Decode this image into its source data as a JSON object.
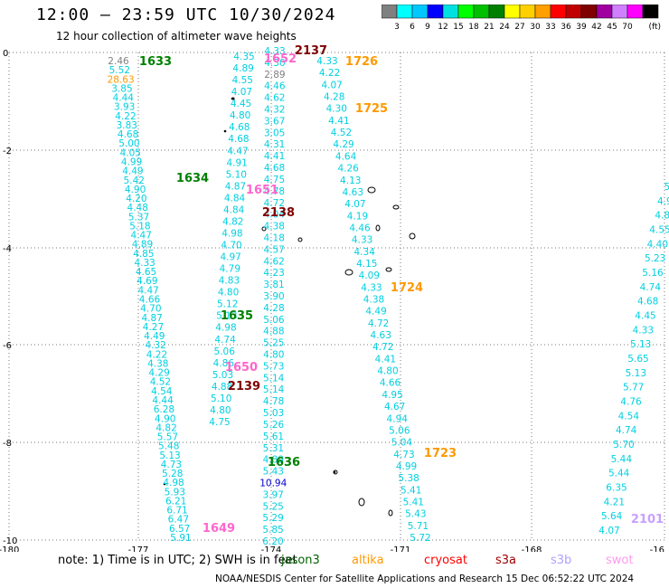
{
  "header": {
    "title": "12:00 — 23:59 UTC 10/30/2024",
    "subtitle": "12 hour collection of altimeter wave heights"
  },
  "legend": {
    "unit": "(ft)",
    "colors": [
      "#808080",
      "#00ffff",
      "#00c8ff",
      "#0000ff",
      "#00e0e0",
      "#00ff00",
      "#00c000",
      "#008000",
      "#ffff00",
      "#ffd000",
      "#ffa000",
      "#ff0000",
      "#c00000",
      "#800000",
      "#a000a0",
      "#d080ff",
      "#ff00ff",
      "#000000"
    ],
    "labels": [
      "3",
      "6",
      "9",
      "12",
      "15",
      "18",
      "21",
      "24",
      "27",
      "30",
      "33",
      "36",
      "39",
      "42",
      "45",
      "70"
    ]
  },
  "axes": {
    "x_ticks": [
      "-180",
      "-177",
      "-174",
      "-171",
      "-168",
      "-16"
    ],
    "y_ticks": [
      "0",
      "-2",
      "-4",
      "-6",
      "-8",
      "-10"
    ]
  },
  "track_labels": [
    {
      "text": "1633",
      "color": "#008000"
    },
    {
      "text": "1634",
      "color": "#008000"
    },
    {
      "text": "1635",
      "color": "#008000"
    },
    {
      "text": "1636",
      "color": "#008000"
    },
    {
      "text": "1726",
      "color": "#ff9900"
    },
    {
      "text": "1725",
      "color": "#ff9900"
    },
    {
      "text": "1724",
      "color": "#ff9900"
    },
    {
      "text": "1723",
      "color": "#ff9900"
    },
    {
      "text": "2137",
      "color": "#800000"
    },
    {
      "text": "2138",
      "color": "#800000"
    },
    {
      "text": "2139",
      "color": "#800000"
    },
    {
      "text": "1652",
      "color": "#ff66cc"
    },
    {
      "text": "1651",
      "color": "#ff66cc"
    },
    {
      "text": "1650",
      "color": "#ff66cc"
    },
    {
      "text": "1649",
      "color": "#ff66cc"
    },
    {
      "text": "2101",
      "color": "#c8a0ff"
    }
  ],
  "tracks": {
    "a": [
      "2.46",
      "5.52",
      "28.63",
      "3.85",
      "4.44",
      "3.93",
      "4.22",
      "3.83",
      "4.68",
      "5.00",
      "4.05",
      "4.99",
      "4.49",
      "5.42",
      "4.90",
      "4.20",
      "4.48",
      "5.37",
      "5.18",
      "4.47",
      "4.89",
      "4.85",
      "4.33",
      "4.65",
      "4.69",
      "4.47",
      "4.66",
      "4.70",
      "4.87",
      "4.27",
      "4.49",
      "4.32",
      "4.22",
      "4.38",
      "4.29",
      "4.52",
      "4.54",
      "4.44",
      "6.28",
      "4.90",
      "4.82",
      "5.57",
      "5.48",
      "5.13",
      "4.73",
      "5.28",
      "4.98",
      "5.93",
      "6.21",
      "6.71",
      "6.47",
      "6.57",
      "5.91"
    ],
    "b": [
      "4.35",
      "4.89",
      "4.55",
      "4.07",
      "4.45",
      "4.80",
      "4.68",
      "4.68",
      "4.47",
      "4.91",
      "5.10",
      "4.87",
      "4.84",
      "4.84",
      "4.82",
      "4.98",
      "4.70",
      "4.97",
      "4.79",
      "4.83",
      "4.80",
      "5.12",
      "5.13",
      "4.98",
      "4.74",
      "5.06",
      "4.86",
      "5.03",
      "4.88",
      "5.10",
      "4.80",
      "4.75"
    ],
    "c": [
      "4.33",
      "4.30",
      "2.89",
      "4.46",
      "4.62",
      "4.32",
      "3.67",
      "3.05",
      "4.31",
      "4.41",
      "4.68",
      "4.75",
      "4.78",
      "4.72",
      "4.04",
      "4.38",
      "4.18",
      "4.57",
      "4.62",
      "4.23",
      "3.81",
      "3.90",
      "4.28",
      "5.06",
      "4.88",
      "5.25",
      "4.80",
      "5.73",
      "5.14",
      "5.14",
      "4.78",
      "5.03",
      "5.26",
      "5.61",
      "5.31",
      "4.89",
      "5.43",
      "10.94",
      "3.97",
      "5.25",
      "5.29",
      "5.85",
      "6.20"
    ],
    "d": [
      "4.33",
      "4.22",
      "4.07",
      "4.28",
      "4.30",
      "4.41",
      "4.52",
      "4.29",
      "4.64",
      "4.26",
      "4.13",
      "4.63",
      "4.07",
      "4.19",
      "4.46",
      "4.33",
      "4.34",
      "4.15",
      "4.09",
      "4.33",
      "4.38",
      "4.49",
      "4.72",
      "4.63",
      "4.72",
      "4.41",
      "4.80",
      "4.66",
      "4.95",
      "4.67",
      "4.94",
      "5.06",
      "5.04",
      "4.73",
      "4.99",
      "5.38",
      "5.41",
      "5.41",
      "5.43",
      "5.71",
      "5.72"
    ],
    "e": [
      "5",
      "4.9",
      "4.8",
      "4.55",
      "4.40",
      "5.23",
      "5.16",
      "4.74",
      "4.68",
      "4.45",
      "4.33",
      "5.13",
      "5.65",
      "5.13",
      "5.77",
      "4.76",
      "4.54",
      "4.74",
      "5.70",
      "5.44",
      "5.44",
      "6.35",
      "4.21",
      "5.64",
      "4.07"
    ]
  },
  "footer": {
    "note": "note:  1) Time is in UTC; 2) SWH is in feet",
    "credit": "NOAA/NESDIS Center for Satellite Applications and Research   15 Dec 06:52:22 UTC 2024",
    "satellites": [
      {
        "name": "jason3",
        "color": "#006400"
      },
      {
        "name": "altika",
        "color": "#ff9900"
      },
      {
        "name": "cryosat",
        "color": "#ff0000"
      },
      {
        "name": "s3a",
        "color": "#a00000"
      },
      {
        "name": "s3b",
        "color": "#b0a0ff"
      },
      {
        "name": "swot",
        "color": "#ff99ee"
      }
    ]
  }
}
